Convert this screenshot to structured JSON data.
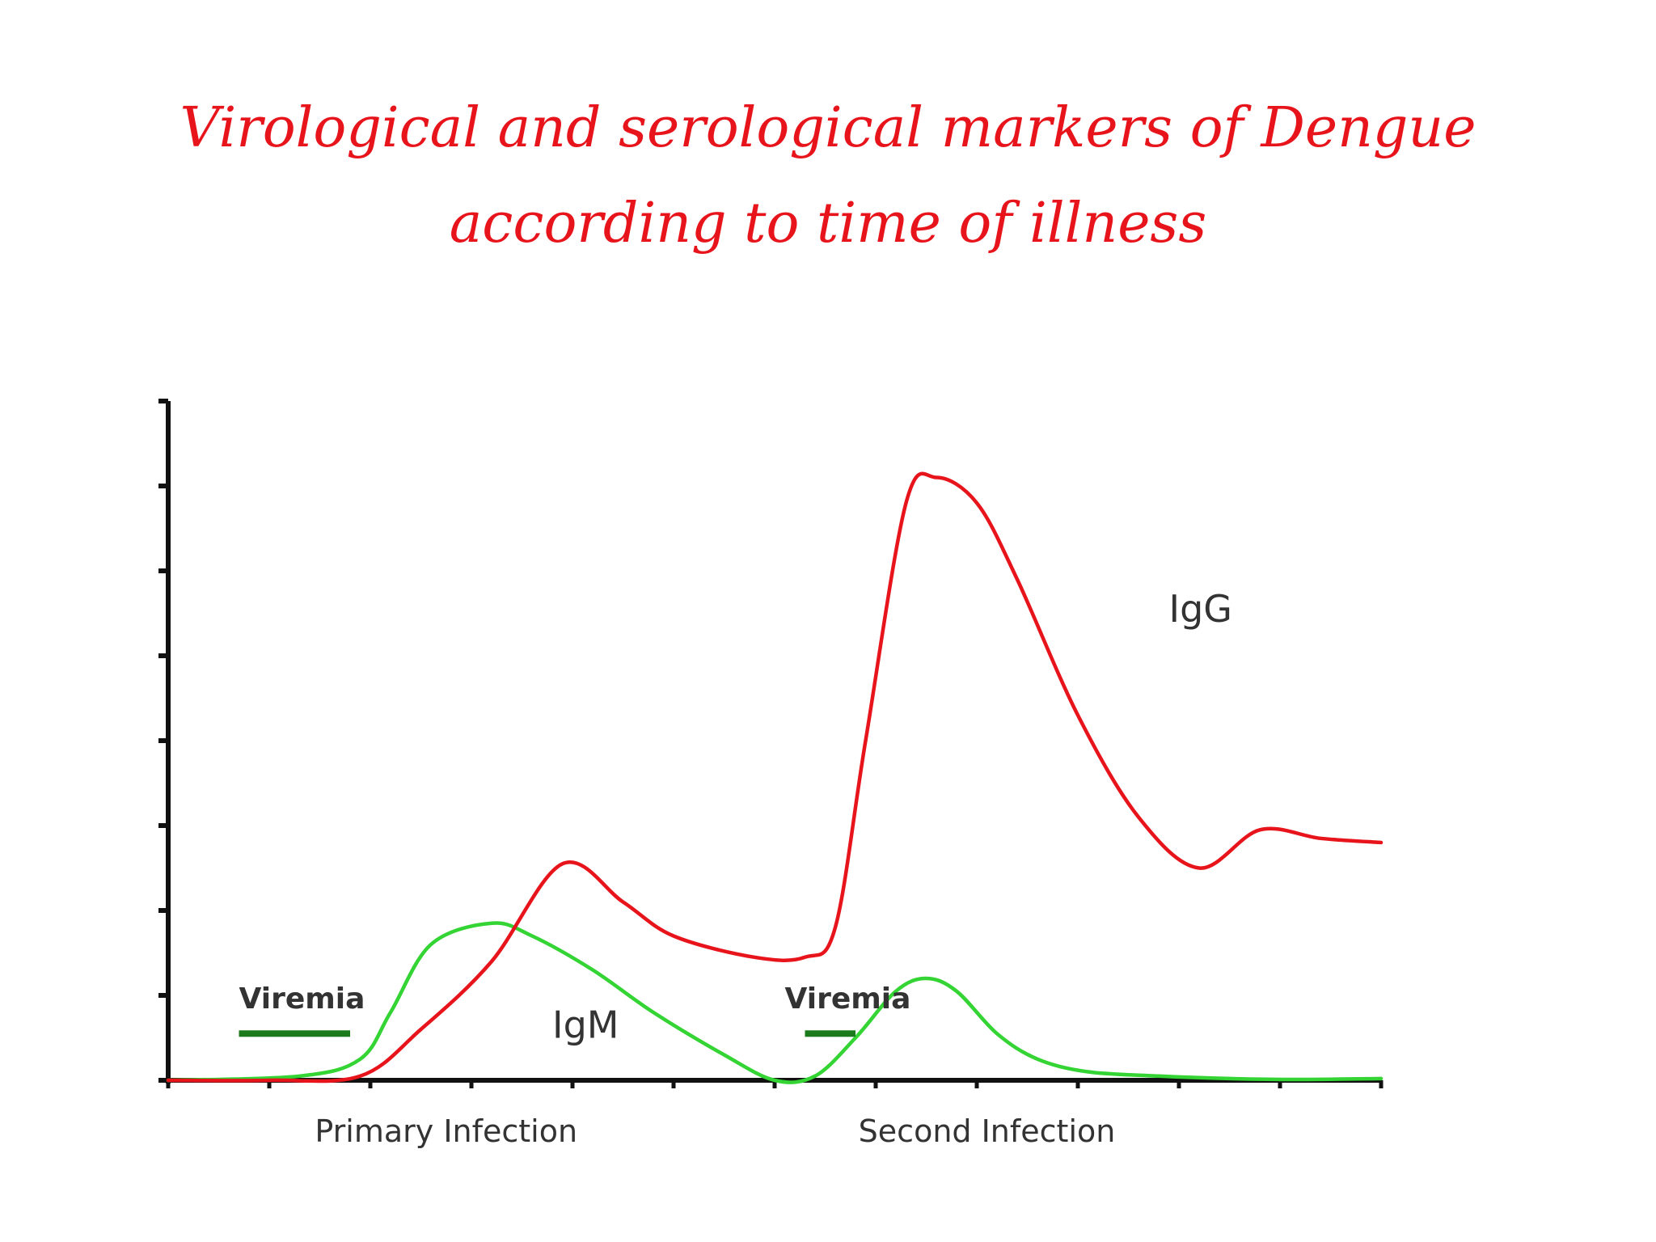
{
  "title": "Virological  and serological markers of Dengue according to time of illness",
  "chart_data": {
    "type": "line",
    "title": "Virological  and serological markers of Dengue according to time of illness",
    "xlabel": "",
    "ylabel": "",
    "xlim": [
      0,
      12
    ],
    "ylim": [
      0,
      8
    ],
    "grid": false,
    "legend": "none",
    "x_tick_count": 13,
    "y_tick_count": 9,
    "category_labels": [
      {
        "text": "Primary Infection",
        "x": 2.75
      },
      {
        "text": "Second Infection",
        "x": 8.1
      }
    ],
    "series": [
      {
        "name": "IgG",
        "color": "#e8141b",
        "x": [
          0,
          1.0,
          1.9,
          2.5,
          3.2,
          3.9,
          4.5,
          5.0,
          5.8,
          6.3,
          6.6,
          6.9,
          7.3,
          7.6,
          8.0,
          8.4,
          9.0,
          9.6,
          10.2,
          10.8,
          11.4,
          12.0
        ],
        "y": [
          0,
          0,
          0.05,
          0.6,
          1.4,
          2.55,
          2.1,
          1.7,
          1.45,
          1.45,
          1.8,
          4.0,
          6.8,
          7.1,
          6.8,
          5.9,
          4.3,
          3.1,
          2.5,
          2.95,
          2.85,
          2.8
        ]
      },
      {
        "name": "IgM",
        "color": "#33d433",
        "x": [
          0,
          1.3,
          1.9,
          2.2,
          2.6,
          3.2,
          3.6,
          4.2,
          4.8,
          5.5,
          6.0,
          6.4,
          6.8,
          7.2,
          7.5,
          7.8,
          8.2,
          8.6,
          9.1,
          9.8,
          10.5,
          11.2,
          12.0
        ],
        "y": [
          0,
          0.05,
          0.25,
          0.8,
          1.6,
          1.85,
          1.7,
          1.3,
          0.8,
          0.3,
          0.0,
          0.05,
          0.5,
          1.05,
          1.2,
          1.05,
          0.55,
          0.25,
          0.1,
          0.05,
          0.02,
          0.01,
          0.02
        ]
      }
    ],
    "annotations": [
      {
        "text": "IgG",
        "x": 9.9,
        "y": 5.4,
        "color": "#333333"
      },
      {
        "text": "IgM",
        "x": 3.8,
        "y": 0.5,
        "color": "#333333"
      },
      {
        "text": "Viremia",
        "x": 0.7,
        "y": 0.85,
        "color": "#333333",
        "bar": [
          0.7,
          1.8
        ],
        "bar_y": 0.55,
        "bar_color": "#1b7a1b"
      },
      {
        "text": "Viremia",
        "x": 6.1,
        "y": 0.85,
        "color": "#333333",
        "bar": [
          6.3,
          6.8
        ],
        "bar_y": 0.55,
        "bar_color": "#1b7a1b"
      }
    ]
  }
}
